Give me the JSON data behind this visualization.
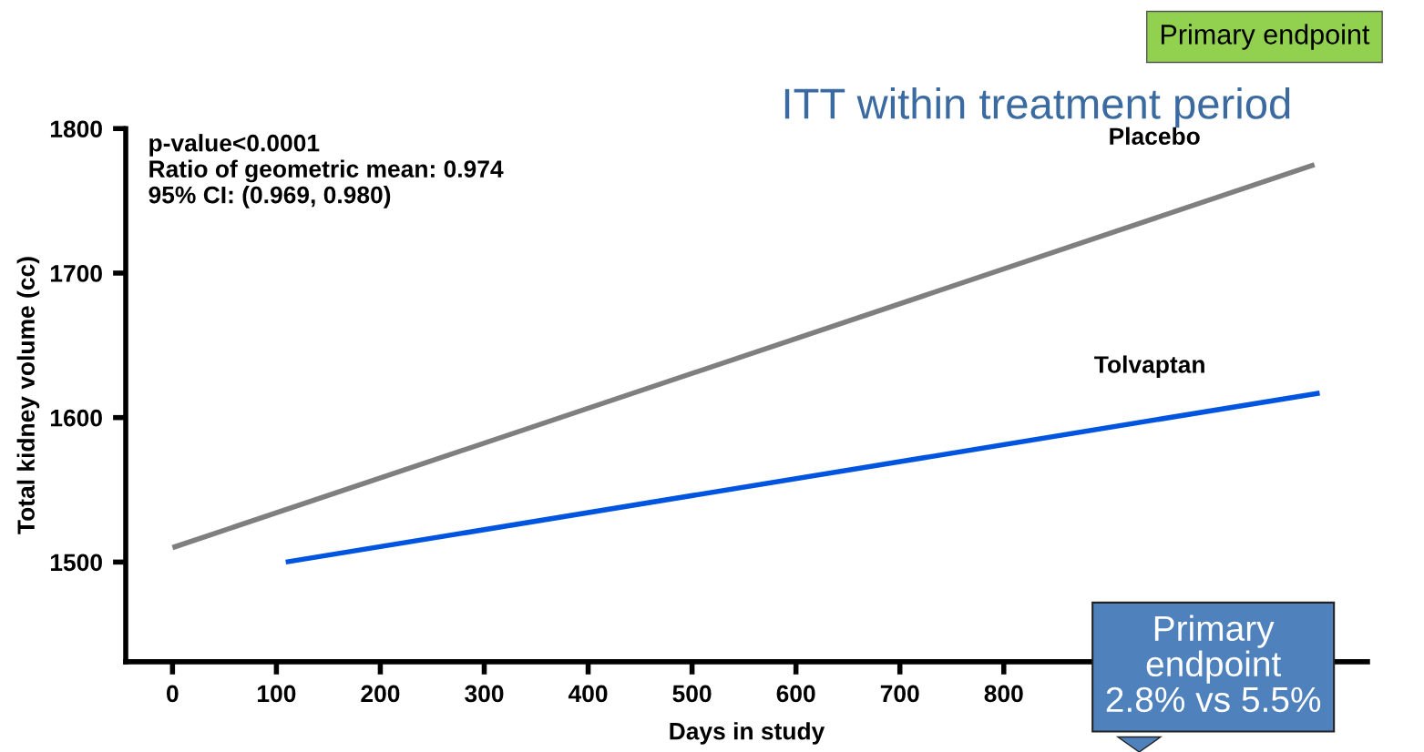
{
  "chart_data": {
    "type": "line",
    "title": "ITT within treatment period",
    "xlabel": "Days in study",
    "ylabel": "Total kidney volume (cc)",
    "xlim": [
      -45,
      1150
    ],
    "xticks": [
      0,
      100,
      200,
      300,
      400,
      500,
      600,
      700,
      800
    ],
    "ylim": [
      1431,
      1800
    ],
    "yticks": [
      1500,
      1600,
      1700,
      1800
    ],
    "grid": false,
    "legend": false,
    "marker": "none",
    "line_style": "solid",
    "series": [
      {
        "name": "Placebo",
        "color": "#7f7f7f",
        "x": [
          0,
          1099
        ],
        "values": [
          1510,
          1775
        ]
      },
      {
        "name": "Tolvaptan",
        "color": "#0055e0",
        "x": [
          109,
          1104
        ],
        "values": [
          1500,
          1617
        ]
      }
    ],
    "annotations": [
      "p-value<0.0001\nRatio of geometric mean: 0.974\n95% CI: (0.969, 0.980)",
      "Primary endpoint",
      "Primary\nendpoint\n2.8% vs 5.5%"
    ]
  }
}
